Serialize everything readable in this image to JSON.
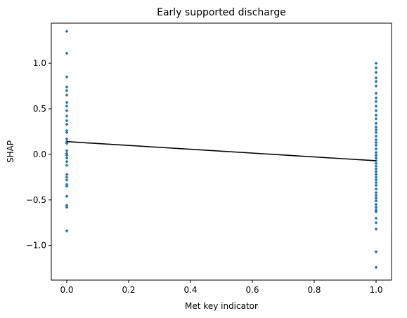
{
  "chart_data": {
    "type": "scatter",
    "title": "Early supported discharge",
    "xlabel": "Met key indicator",
    "ylabel": "SHAP",
    "xlim": [
      -0.05,
      1.05
    ],
    "ylim": [
      -1.38,
      1.44
    ],
    "xticks": [
      0.0,
      0.2,
      0.4,
      0.6,
      0.8,
      1.0
    ],
    "xtick_labels": [
      "0.0",
      "0.2",
      "0.4",
      "0.6",
      "0.8",
      "1.0"
    ],
    "yticks": [
      -1.0,
      -0.5,
      0.0,
      0.5,
      1.0
    ],
    "ytick_labels": [
      "−1.0",
      "−0.5",
      "0.0",
      "0.5",
      "1.0"
    ],
    "grid": false,
    "series": [
      {
        "kind": "scatter",
        "color": "#1f77b4",
        "points": [
          [
            0,
            1.35
          ],
          [
            0,
            1.11
          ],
          [
            0,
            0.85
          ],
          [
            0,
            0.74
          ],
          [
            0,
            0.7
          ],
          [
            0,
            0.65
          ],
          [
            0,
            0.57
          ],
          [
            0,
            0.53
          ],
          [
            0,
            0.48
          ],
          [
            0,
            0.42
          ],
          [
            0,
            0.37
          ],
          [
            0,
            0.33
          ],
          [
            0,
            0.26
          ],
          [
            0,
            0.24
          ],
          [
            0,
            0.17
          ],
          [
            0,
            0.14
          ],
          [
            0,
            0.12
          ],
          [
            0,
            0.04
          ],
          [
            0,
            0.01
          ],
          [
            0,
            -0.01
          ],
          [
            0,
            -0.04
          ],
          [
            0,
            -0.08
          ],
          [
            0,
            -0.12
          ],
          [
            0,
            -0.22
          ],
          [
            0,
            -0.25
          ],
          [
            0,
            -0.28
          ],
          [
            0,
            -0.33
          ],
          [
            0,
            -0.35
          ],
          [
            0,
            -0.46
          ],
          [
            0,
            -0.56
          ],
          [
            0,
            -0.58
          ],
          [
            0,
            -0.84
          ],
          [
            1,
            1.0
          ],
          [
            1,
            0.95
          ],
          [
            1,
            0.9
          ],
          [
            1,
            0.84
          ],
          [
            1,
            0.8
          ],
          [
            1,
            0.75
          ],
          [
            1,
            0.67
          ],
          [
            1,
            0.62
          ],
          [
            1,
            0.58
          ],
          [
            1,
            0.53
          ],
          [
            1,
            0.48
          ],
          [
            1,
            0.43
          ],
          [
            1,
            0.39
          ],
          [
            1,
            0.34
          ],
          [
            1,
            0.3
          ],
          [
            1,
            0.27
          ],
          [
            1,
            0.24
          ],
          [
            1,
            0.2
          ],
          [
            1,
            0.16
          ],
          [
            1,
            0.13
          ],
          [
            1,
            0.1
          ],
          [
            1,
            0.06
          ],
          [
            1,
            0.02
          ],
          [
            1,
            -0.01
          ],
          [
            1,
            -0.04
          ],
          [
            1,
            -0.07
          ],
          [
            1,
            -0.1
          ],
          [
            1,
            -0.13
          ],
          [
            1,
            -0.16
          ],
          [
            1,
            -0.19
          ],
          [
            1,
            -0.22
          ],
          [
            1,
            -0.25
          ],
          [
            1,
            -0.28
          ],
          [
            1,
            -0.31
          ],
          [
            1,
            -0.34
          ],
          [
            1,
            -0.38
          ],
          [
            1,
            -0.42
          ],
          [
            1,
            -0.45
          ],
          [
            1,
            -0.48
          ],
          [
            1,
            -0.51
          ],
          [
            1,
            -0.55
          ],
          [
            1,
            -0.58
          ],
          [
            1,
            -0.61
          ],
          [
            1,
            -0.63
          ],
          [
            1,
            -0.7
          ],
          [
            1,
            -0.75
          ],
          [
            1,
            -0.82
          ],
          [
            1,
            -1.07
          ],
          [
            1,
            -1.24
          ]
        ]
      },
      {
        "kind": "line",
        "color": "#000000",
        "points": [
          [
            0,
            0.14
          ],
          [
            1,
            -0.07
          ]
        ]
      }
    ]
  }
}
